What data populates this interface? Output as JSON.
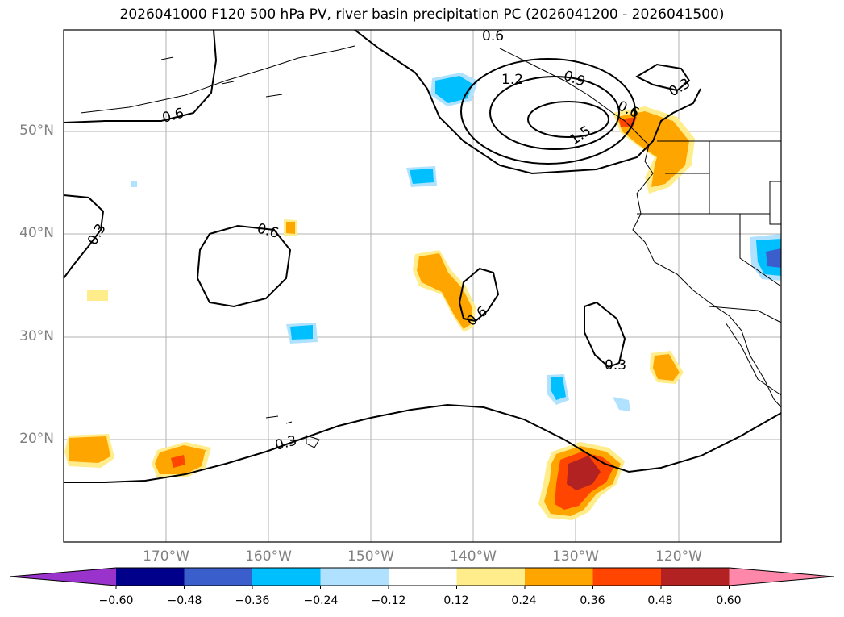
{
  "title": "2026041000 F120 500 hPa PV, river basin precipitation PC (2026041200 - 2026041500)",
  "lat_labels": [
    "50°N",
    "40°N",
    "30°N",
    "20°N"
  ],
  "lon_labels": [
    "170°W",
    "160°W",
    "150°W",
    "140°W",
    "130°W",
    "120°W"
  ],
  "contour_labels": [
    "0.6",
    "1.2",
    "0.9",
    "0.6",
    "0.3",
    "0.6",
    "1.5",
    "0.3",
    "0.6",
    "0.6",
    "0.3",
    "0.3"
  ],
  "colorbar": {
    "ticks": [
      "−0.60",
      "−0.48",
      "−0.36",
      "−0.24",
      "−0.12",
      "0.12",
      "0.24",
      "0.36",
      "0.48",
      "0.60"
    ],
    "colors": [
      "#9933cc",
      "#00008b",
      "#3a5fcd",
      "#00bfff",
      "#b0e2ff",
      "#ffffff",
      "#ffec8b",
      "#ffa500",
      "#ff4500",
      "#b22222",
      "#ff88aa"
    ]
  }
}
